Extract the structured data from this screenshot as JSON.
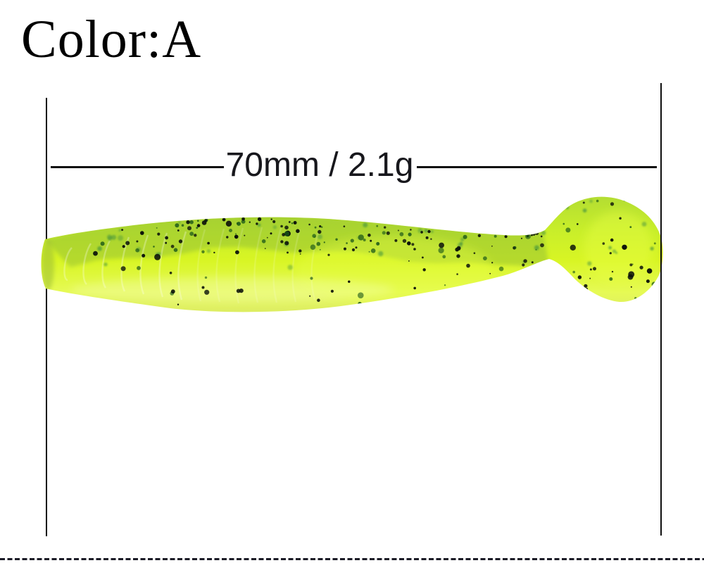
{
  "header": {
    "color_label": "Color:A"
  },
  "measurement": {
    "label": "70mm / 2.1g",
    "length": "70mm",
    "weight": "2.1g"
  },
  "product": {
    "subject": "chartreuse paddle-tail soft fishing lure with black and green flakes",
    "color_option": "A",
    "colors": {
      "body_top": "#b2dc33",
      "body_upper": "#c8ee2a",
      "body_mid": "#d8f524",
      "body_lower": "#e6fa55",
      "body_bottom": "#dcec63",
      "band_tint": "#7fae3a",
      "glow": "#e9ff44",
      "speckle_dark": "#0b110a",
      "speckle_green_dark": "#175417",
      "speckle_green": "#3d8f3d"
    }
  },
  "decor": {
    "background": "#ffffff",
    "text_color": "#000000",
    "line_color": "#0e0e0e",
    "dash_color": "#1b1b26"
  }
}
